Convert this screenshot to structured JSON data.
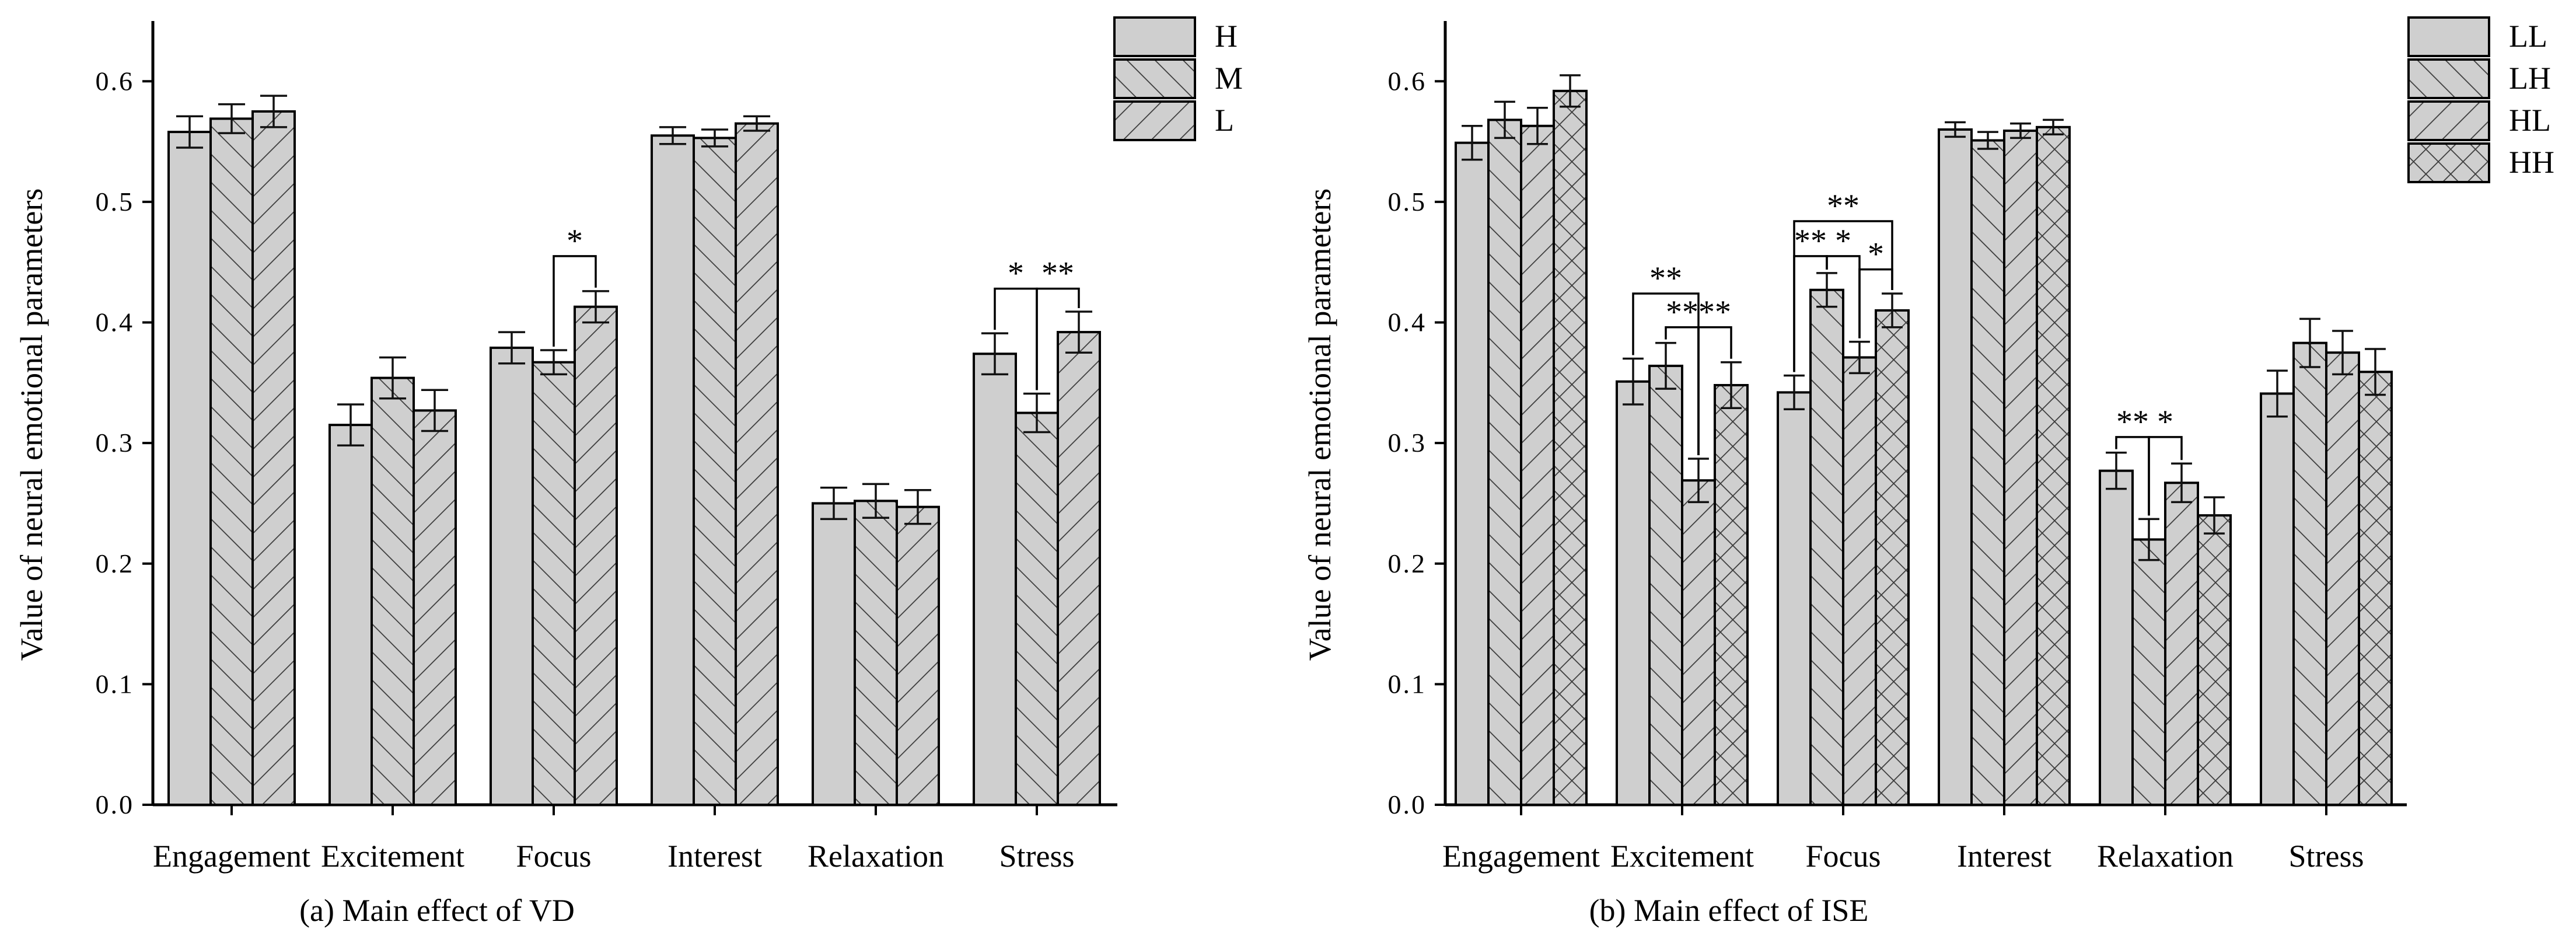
{
  "chart_data": [
    {
      "type": "bar",
      "caption": "(a) Main effect of VD",
      "ylabel": "Value of neural emotional parameters",
      "ylim": [
        0,
        0.65
      ],
      "yticks": [
        "0.0",
        "0.1",
        "0.2",
        "0.3",
        "0.4",
        "0.5",
        "0.6"
      ],
      "categories": [
        "Engagement",
        "Excitement",
        "Focus",
        "Interest",
        "Relaxation",
        "Stress"
      ],
      "legend_position": "top-right",
      "series": [
        {
          "name": "H",
          "pattern": "none",
          "values": [
            0.558,
            0.315,
            0.379,
            0.555,
            0.25,
            0.374
          ],
          "errors": [
            0.013,
            0.017,
            0.013,
            0.007,
            0.013,
            0.017
          ]
        },
        {
          "name": "M",
          "pattern": "diag-up",
          "values": [
            0.569,
            0.354,
            0.367,
            0.553,
            0.252,
            0.325
          ],
          "errors": [
            0.012,
            0.017,
            0.01,
            0.007,
            0.014,
            0.016
          ]
        },
        {
          "name": "L",
          "pattern": "diag-down",
          "values": [
            0.575,
            0.327,
            0.413,
            0.565,
            0.247,
            0.392
          ],
          "errors": [
            0.013,
            0.017,
            0.013,
            0.006,
            0.014,
            0.017
          ]
        }
      ],
      "significance": [
        {
          "category": 2,
          "from": 1,
          "to": 2,
          "label": "*",
          "level": 0.455
        },
        {
          "category": 5,
          "from": 0,
          "to": 1,
          "label": "*",
          "level": 0.428
        },
        {
          "category": 5,
          "from": 1,
          "to": 2,
          "label": "**",
          "level": 0.428
        }
      ]
    },
    {
      "type": "bar",
      "caption": "(b) Main effect of ISE",
      "ylabel": "Value of neural emotional parameters",
      "ylim": [
        0,
        0.65
      ],
      "yticks": [
        "0.0",
        "0.1",
        "0.2",
        "0.3",
        "0.4",
        "0.5",
        "0.6"
      ],
      "categories": [
        "Engagement",
        "Excitement",
        "Focus",
        "Interest",
        "Relaxation",
        "Stress"
      ],
      "legend_position": "top-right",
      "series": [
        {
          "name": "LL",
          "pattern": "none",
          "values": [
            0.549,
            0.351,
            0.342,
            0.56,
            0.277,
            0.341
          ],
          "errors": [
            0.014,
            0.019,
            0.014,
            0.006,
            0.015,
            0.019
          ]
        },
        {
          "name": "LH",
          "pattern": "diag-up",
          "values": [
            0.568,
            0.364,
            0.427,
            0.551,
            0.22,
            0.383
          ],
          "errors": [
            0.015,
            0.019,
            0.014,
            0.007,
            0.017,
            0.02
          ]
        },
        {
          "name": "HL",
          "pattern": "diag-down",
          "values": [
            0.563,
            0.269,
            0.371,
            0.559,
            0.267,
            0.375
          ],
          "errors": [
            0.015,
            0.018,
            0.013,
            0.006,
            0.016,
            0.018
          ]
        },
        {
          "name": "HH",
          "pattern": "cross",
          "values": [
            0.592,
            0.348,
            0.41,
            0.562,
            0.24,
            0.359
          ],
          "errors": [
            0.013,
            0.019,
            0.014,
            0.006,
            0.015,
            0.019
          ]
        }
      ],
      "significance": [
        {
          "category": 1,
          "from": 0,
          "to": 2,
          "label": "**",
          "level": 0.424
        },
        {
          "category": 1,
          "from": 1,
          "to": 2,
          "label": "**",
          "level": 0.396
        },
        {
          "category": 1,
          "from": 2,
          "to": 3,
          "label": "**",
          "level": 0.396
        },
        {
          "category": 2,
          "from": 0,
          "to": 3,
          "label": "**",
          "level": 0.484
        },
        {
          "category": 2,
          "from": 0,
          "to": 1,
          "label": "**",
          "level": 0.455
        },
        {
          "category": 2,
          "from": 1,
          "to": 2,
          "label": "*",
          "level": 0.455
        },
        {
          "category": 2,
          "from": 2,
          "to": 3,
          "label": "*",
          "level": 0.444
        },
        {
          "category": 4,
          "from": 0,
          "to": 1,
          "label": "**",
          "level": 0.305
        },
        {
          "category": 4,
          "from": 1,
          "to": 2,
          "label": "*",
          "level": 0.305
        }
      ]
    }
  ]
}
